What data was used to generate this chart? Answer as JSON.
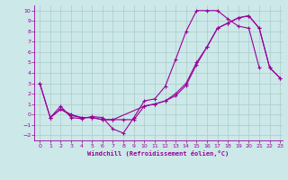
{
  "bg_color": "#cce8e8",
  "line_color": "#990099",
  "grid_color": "#aacccc",
  "xlabel": "Windchill (Refroidissement éolien,°C)",
  "xlabel_color": "#990099",
  "tick_color": "#990099",
  "xmin": 0,
  "xmax": 23,
  "ymin": -2.5,
  "ymax": 10.5,
  "yticks": [
    -2,
    -1,
    0,
    1,
    2,
    3,
    4,
    5,
    6,
    7,
    8,
    9,
    10
  ],
  "xticks": [
    0,
    1,
    2,
    3,
    4,
    5,
    6,
    7,
    8,
    9,
    10,
    11,
    12,
    13,
    14,
    15,
    16,
    17,
    18,
    19,
    20,
    21,
    22,
    23
  ],
  "line1_x": [
    0,
    1,
    2,
    3,
    4,
    5,
    6,
    7,
    8,
    9,
    10,
    11,
    12,
    13,
    14,
    15,
    16,
    17,
    18,
    19,
    20,
    21
  ],
  "line1_y": [
    3.0,
    -0.3,
    0.8,
    -0.3,
    -0.4,
    -0.2,
    -0.3,
    -1.4,
    -1.8,
    -0.3,
    1.3,
    1.5,
    2.7,
    5.3,
    8.0,
    10.0,
    10.0,
    10.0,
    9.2,
    8.5,
    8.3,
    4.5
  ],
  "line2_x": [
    1,
    2,
    3,
    4,
    5,
    6,
    7,
    10,
    11,
    12,
    13,
    14,
    15,
    16,
    17,
    18,
    19,
    20,
    21,
    22,
    23
  ],
  "line2_y": [
    -0.3,
    0.5,
    -0.1,
    -0.3,
    -0.3,
    -0.5,
    -0.5,
    0.8,
    1.0,
    1.3,
    1.8,
    2.8,
    4.8,
    6.5,
    8.3,
    8.8,
    9.3,
    9.5,
    8.3,
    4.5,
    3.5
  ],
  "line3_x": [
    0,
    1,
    2,
    3,
    4,
    5,
    6,
    7,
    8,
    9,
    10,
    11,
    12,
    13,
    14,
    15,
    16,
    17,
    18,
    19,
    20,
    21,
    22,
    23
  ],
  "line3_y": [
    3.0,
    -0.3,
    0.5,
    0.0,
    -0.3,
    -0.3,
    -0.5,
    -0.5,
    -0.5,
    -0.5,
    0.8,
    1.0,
    1.3,
    2.0,
    3.0,
    5.0,
    6.5,
    8.3,
    8.8,
    9.3,
    9.5,
    8.3,
    4.5,
    3.5
  ]
}
